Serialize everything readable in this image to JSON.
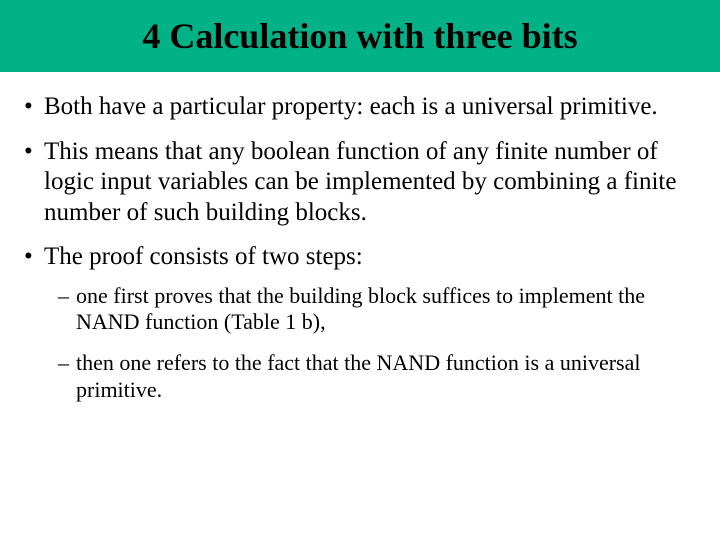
{
  "header": {
    "title": "4 Calculation with three bits",
    "background_color": "#00b286",
    "title_color": "#000000",
    "title_fontsize": 36,
    "title_fontweight": "bold"
  },
  "body": {
    "background_color": "#ffffff",
    "text_color": "#000000",
    "main_fontsize": 25,
    "sub_fontsize": 22,
    "font_family": "Times New Roman"
  },
  "bullets": [
    {
      "text": "Both have a particular property: each is a universal primitive."
    },
    {
      "text": "This means that any boolean function of any finite number of logic input variables can be implemented by combining a finite number of such building blocks."
    },
    {
      "text": "The proof consists of two steps:",
      "sub": [
        {
          "text": "one first proves that the building block suffices to implement the NAND function (Table 1 b),"
        },
        {
          "text": "then one refers to the fact that the NAND function is a universal primitive."
        }
      ]
    }
  ]
}
